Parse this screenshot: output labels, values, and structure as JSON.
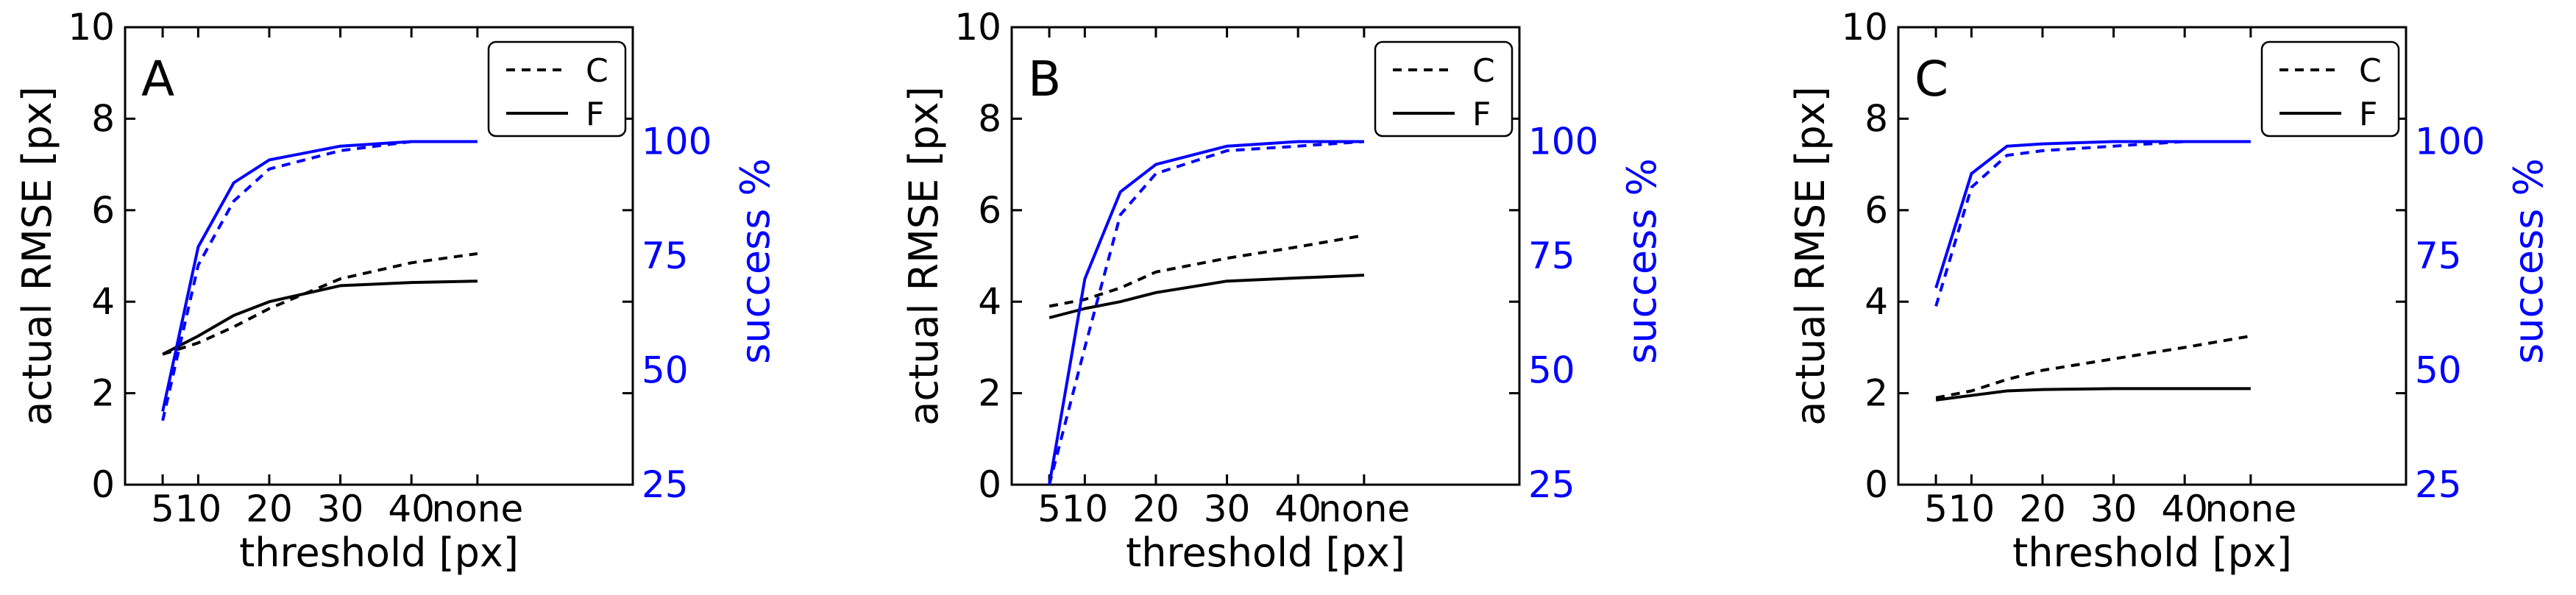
{
  "chart_data": [
    {
      "type": "line",
      "panel_label": "A",
      "categories": [
        "5",
        "10",
        "15",
        "20",
        "30",
        "40",
        "none"
      ],
      "x_tick_labels": [
        "5",
        "10",
        "20",
        "30",
        "40",
        "none"
      ],
      "xlabel": "threshold [px]",
      "ylabel": "actual RMSE [px]",
      "ylim": [
        0,
        10
      ],
      "y_ticks": [
        "0",
        "2",
        "4",
        "6",
        "8",
        "10"
      ],
      "y2label": "success %",
      "y2lim": [
        25,
        125
      ],
      "y2_ticks": [
        "25",
        "50",
        "75",
        "100"
      ],
      "legend": {
        "position": "top-right",
        "entries": [
          {
            "label": "C",
            "style": "dashed"
          },
          {
            "label": "F",
            "style": "solid"
          }
        ]
      },
      "series": [
        {
          "name": "C",
          "axis": "left",
          "metric": "rmse",
          "style": "dashed",
          "values": [
            2.85,
            3.1,
            3.45,
            3.85,
            4.5,
            4.85,
            5.05
          ]
        },
        {
          "name": "F",
          "axis": "left",
          "metric": "rmse",
          "style": "solid",
          "values": [
            2.85,
            3.25,
            3.7,
            4.0,
            4.35,
            4.42,
            4.45
          ]
        },
        {
          "name": "C",
          "axis": "right",
          "metric": "success",
          "style": "dashed",
          "values": [
            39,
            73,
            87,
            94,
            98,
            100,
            100
          ]
        },
        {
          "name": "F",
          "axis": "right",
          "metric": "success",
          "style": "solid",
          "values": [
            41,
            77,
            91,
            96,
            99,
            100,
            100
          ]
        }
      ]
    },
    {
      "type": "line",
      "panel_label": "B",
      "categories": [
        "5",
        "10",
        "15",
        "20",
        "30",
        "40",
        "none"
      ],
      "x_tick_labels": [
        "5",
        "10",
        "20",
        "30",
        "40",
        "none"
      ],
      "xlabel": "threshold [px]",
      "ylabel": "actual RMSE [px]",
      "ylim": [
        0,
        10
      ],
      "y_ticks": [
        "0",
        "2",
        "4",
        "6",
        "8",
        "10"
      ],
      "y2label": "success %",
      "y2lim": [
        25,
        125
      ],
      "y2_ticks": [
        "25",
        "50",
        "75",
        "100"
      ],
      "legend": {
        "position": "top-right",
        "entries": [
          {
            "label": "C",
            "style": "dashed"
          },
          {
            "label": "F",
            "style": "solid"
          }
        ]
      },
      "series": [
        {
          "name": "C",
          "axis": "left",
          "metric": "rmse",
          "style": "dashed",
          "values": [
            3.9,
            4.05,
            4.3,
            4.65,
            4.95,
            5.2,
            5.45
          ]
        },
        {
          "name": "F",
          "axis": "left",
          "metric": "rmse",
          "style": "solid",
          "values": [
            3.65,
            3.85,
            4.0,
            4.2,
            4.45,
            4.52,
            4.58
          ]
        },
        {
          "name": "C",
          "axis": "right",
          "metric": "success",
          "style": "dashed",
          "values": [
            25,
            55,
            84,
            93,
            98,
            99,
            100
          ]
        },
        {
          "name": "F",
          "axis": "right",
          "metric": "success",
          "style": "solid",
          "values": [
            25,
            70,
            89,
            95,
            99,
            100,
            100
          ]
        }
      ]
    },
    {
      "type": "line",
      "panel_label": "C",
      "categories": [
        "5",
        "10",
        "15",
        "20",
        "30",
        "40",
        "none"
      ],
      "x_tick_labels": [
        "5",
        "10",
        "20",
        "30",
        "40",
        "none"
      ],
      "xlabel": "threshold [px]",
      "ylabel": "actual RMSE [px]",
      "ylim": [
        0,
        10
      ],
      "y_ticks": [
        "0",
        "2",
        "4",
        "6",
        "8",
        "10"
      ],
      "y2label": "success %",
      "y2lim": [
        25,
        125
      ],
      "y2_ticks": [
        "25",
        "50",
        "75",
        "100"
      ],
      "legend": {
        "position": "top-right",
        "entries": [
          {
            "label": "C",
            "style": "dashed"
          },
          {
            "label": "F",
            "style": "solid"
          }
        ]
      },
      "series": [
        {
          "name": "C",
          "axis": "left",
          "metric": "rmse",
          "style": "dashed",
          "values": [
            1.9,
            2.05,
            2.3,
            2.5,
            2.75,
            3.0,
            3.25
          ]
        },
        {
          "name": "F",
          "axis": "left",
          "metric": "rmse",
          "style": "solid",
          "values": [
            1.85,
            1.95,
            2.05,
            2.08,
            2.1,
            2.1,
            2.1
          ]
        },
        {
          "name": "C",
          "axis": "right",
          "metric": "success",
          "style": "dashed",
          "values": [
            64,
            90,
            97,
            98,
            99,
            100,
            100
          ]
        },
        {
          "name": "F",
          "axis": "right",
          "metric": "success",
          "style": "solid",
          "values": [
            68,
            93,
            99,
            99.5,
            100,
            100,
            100
          ]
        }
      ]
    }
  ],
  "colors": {
    "rmse_line": "#000000",
    "success_line": "#0000ff",
    "axis": "#000000",
    "right_axis": "#0000ff",
    "legend_border": "#000000"
  }
}
